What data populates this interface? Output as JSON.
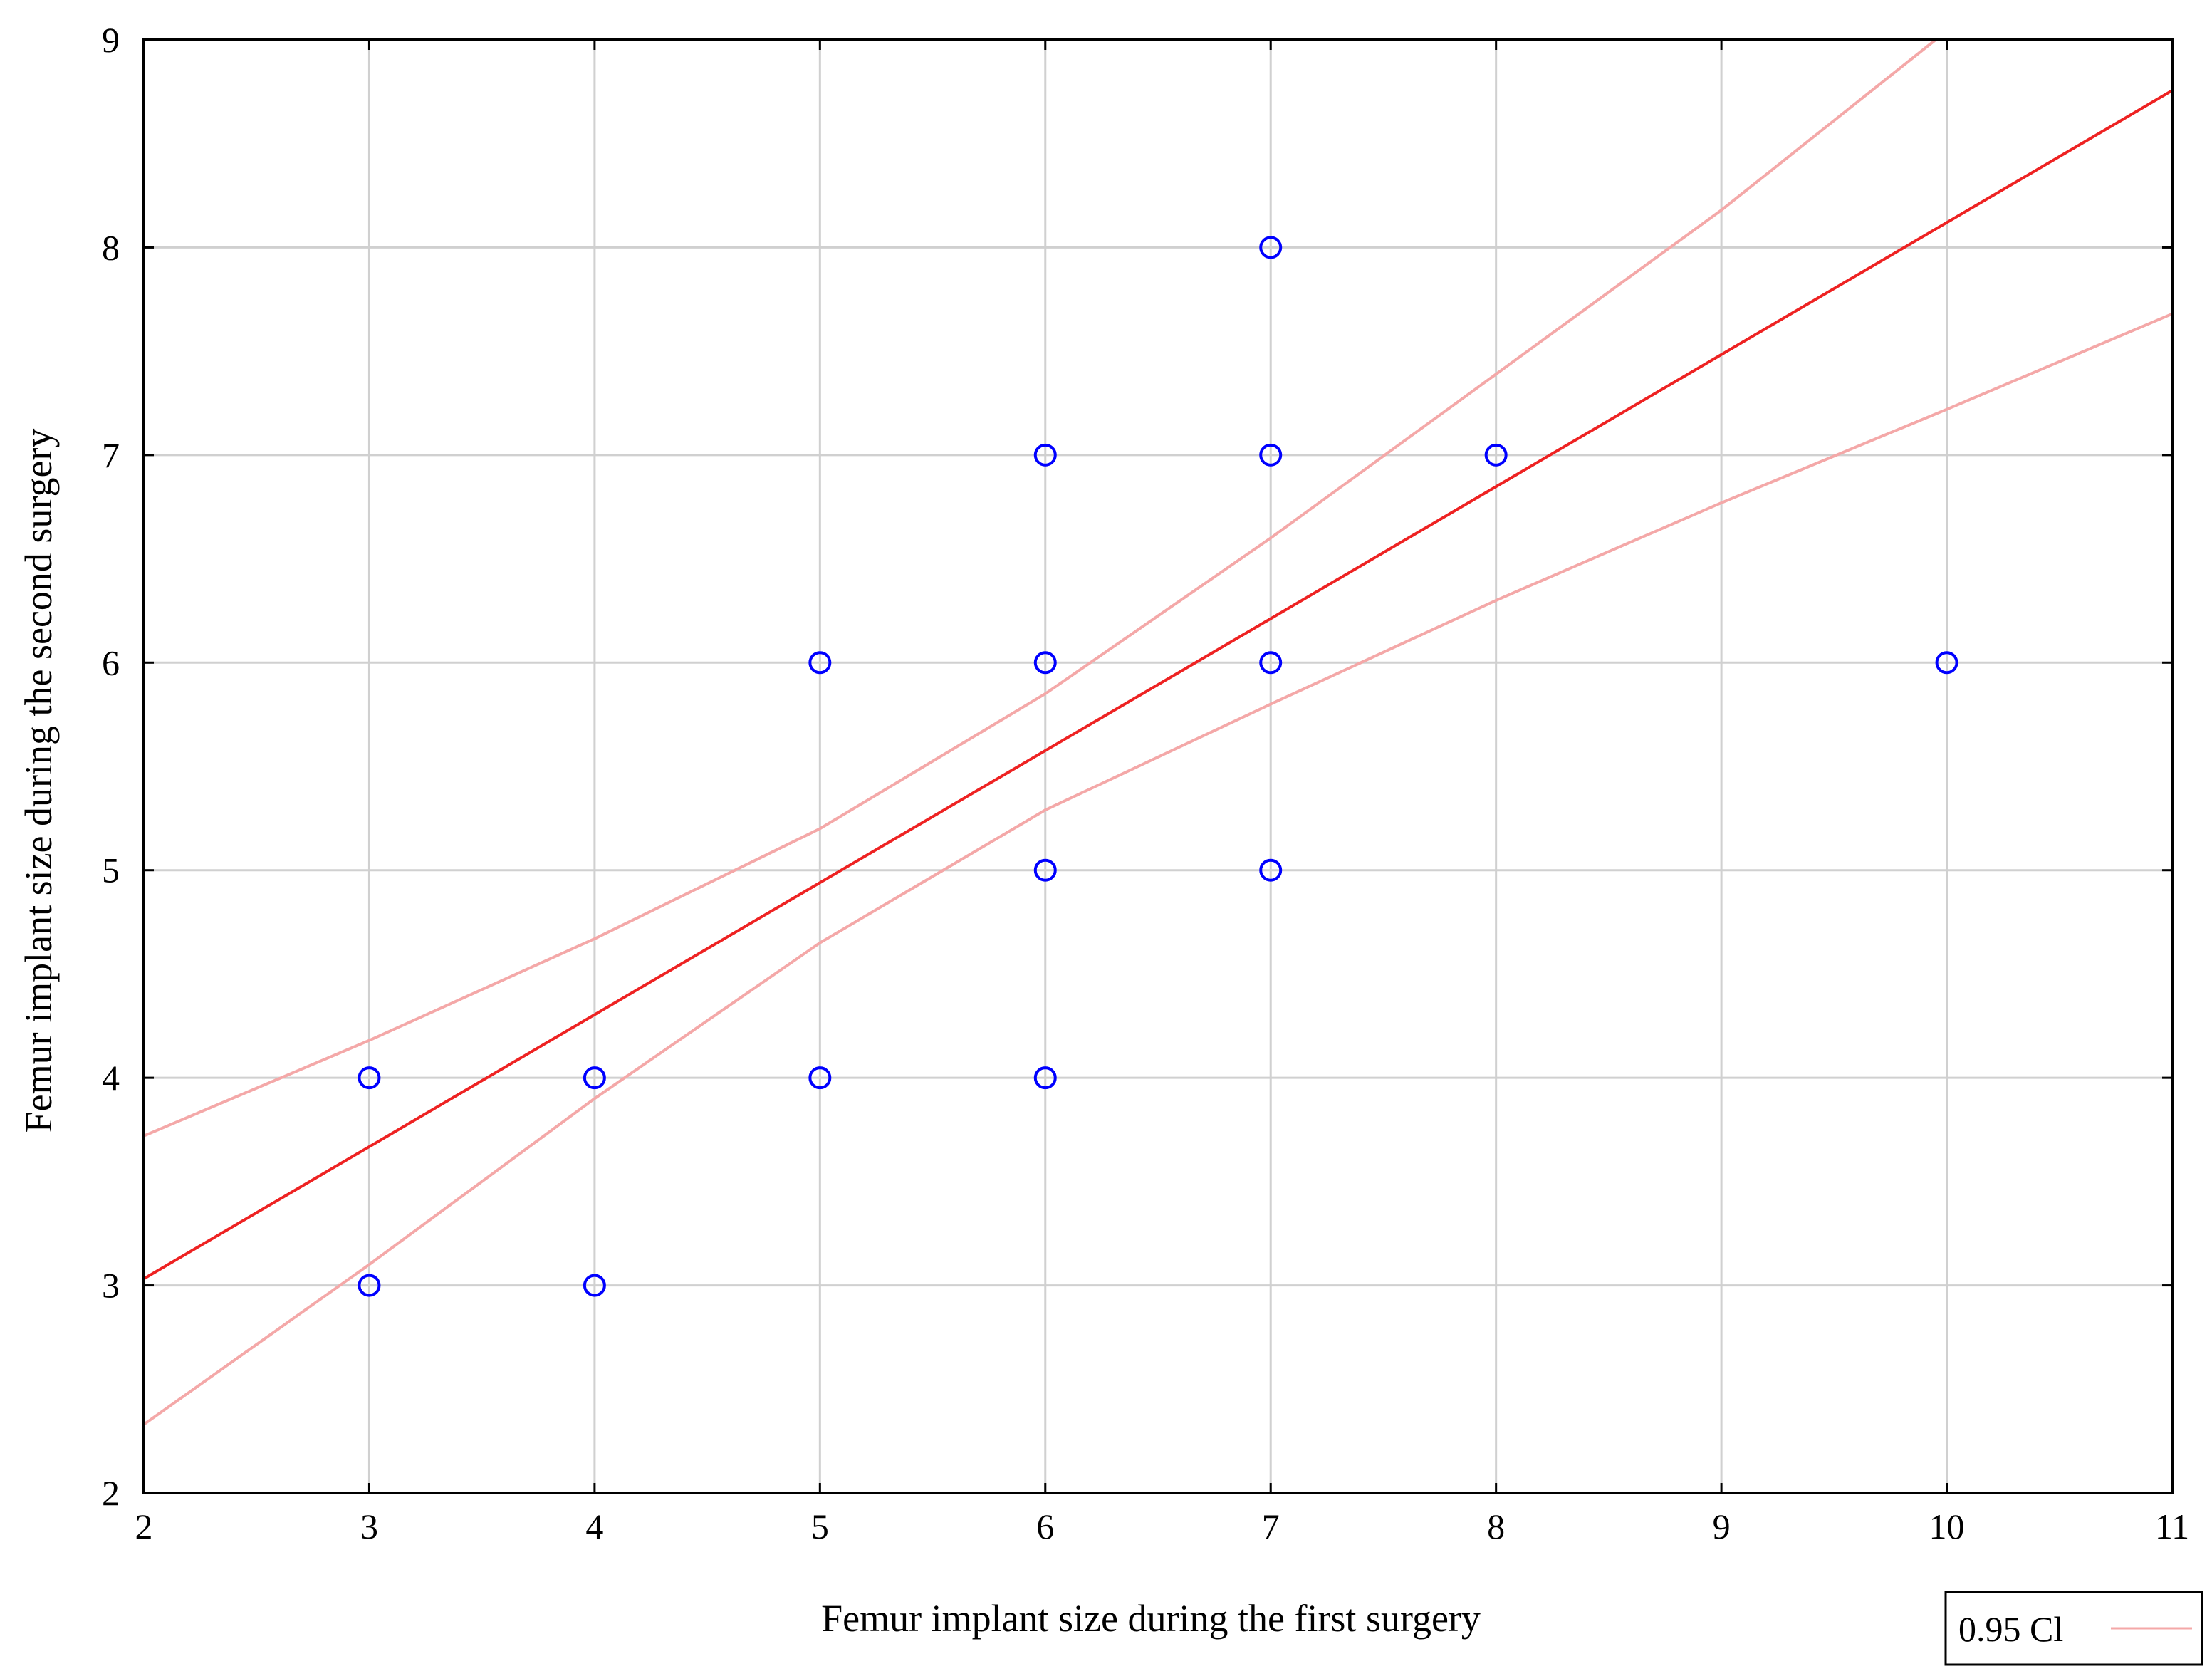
{
  "chart_data": {
    "type": "scatter",
    "title": "",
    "xlabel": "Femur implant size during the first surgery",
    "ylabel": "Femur implant size during the second surgery",
    "xlim": [
      2,
      11
    ],
    "ylim": [
      2,
      9
    ],
    "xticks": [
      2,
      3,
      4,
      5,
      6,
      7,
      8,
      9,
      10,
      11
    ],
    "yticks": [
      2,
      3,
      4,
      5,
      6,
      7,
      8,
      9
    ],
    "xtick_labels": [
      "2",
      "3",
      "4",
      "5",
      "6",
      "7",
      "8",
      "9",
      "10",
      "11"
    ],
    "ytick_labels": [
      "2",
      "3",
      "4",
      "5",
      "6",
      "7",
      "8",
      "9"
    ],
    "grid": true,
    "points": [
      {
        "x": 3,
        "y": 3
      },
      {
        "x": 3,
        "y": 4
      },
      {
        "x": 4,
        "y": 3
      },
      {
        "x": 4,
        "y": 4
      },
      {
        "x": 5,
        "y": 4
      },
      {
        "x": 5,
        "y": 6
      },
      {
        "x": 6,
        "y": 4
      },
      {
        "x": 6,
        "y": 5
      },
      {
        "x": 6,
        "y": 6
      },
      {
        "x": 6,
        "y": 7
      },
      {
        "x": 7,
        "y": 5
      },
      {
        "x": 7,
        "y": 6
      },
      {
        "x": 7,
        "y": 7
      },
      {
        "x": 7,
        "y": 8
      },
      {
        "x": 8,
        "y": 7
      },
      {
        "x": 10,
        "y": 6
      }
    ],
    "regression": {
      "intercept": 1.76,
      "slope": 0.636
    },
    "confidence_band": {
      "level": "0.95 CI",
      "upper": [
        {
          "x": 2,
          "y": 3.72
        },
        {
          "x": 3,
          "y": 4.18
        },
        {
          "x": 4,
          "y": 4.67
        },
        {
          "x": 5,
          "y": 5.2
        },
        {
          "x": 6,
          "y": 5.85
        },
        {
          "x": 7,
          "y": 6.6
        },
        {
          "x": 8,
          "y": 7.39
        },
        {
          "x": 9,
          "y": 8.18
        },
        {
          "x": 9.95,
          "y": 9.0
        }
      ],
      "lower": [
        {
          "x": 2,
          "y": 2.33
        },
        {
          "x": 3,
          "y": 3.1
        },
        {
          "x": 4,
          "y": 3.9
        },
        {
          "x": 5,
          "y": 4.65
        },
        {
          "x": 6,
          "y": 5.29
        },
        {
          "x": 7,
          "y": 5.8
        },
        {
          "x": 8,
          "y": 6.3
        },
        {
          "x": 9,
          "y": 6.77
        },
        {
          "x": 10,
          "y": 7.22
        },
        {
          "x": 11,
          "y": 7.68
        }
      ]
    },
    "legend": {
      "label": "0.95 Cl",
      "placement": "bottom-right"
    },
    "colors": {
      "points": "#0000ff",
      "fit_line": "#ee2222",
      "ci_line": "#f4a8a8",
      "grid": "#d0d0d0",
      "axes": "#000000"
    }
  }
}
